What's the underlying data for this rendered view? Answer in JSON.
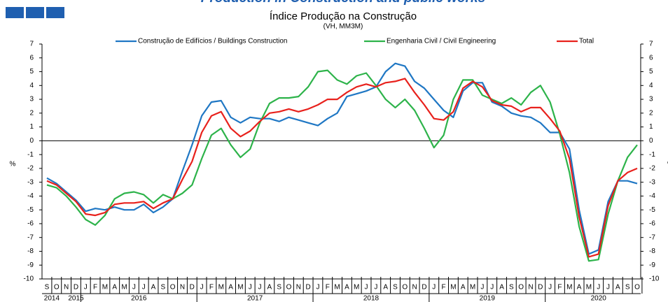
{
  "chart_data": {
    "type": "line",
    "title": "Production in Construction and public works",
    "subtitle": "Índice Produção na Construção",
    "subtitle2": "(VH, MM3M)",
    "ylabel": "%",
    "y2label": "%",
    "categories": [
      "S",
      "O",
      "N",
      "D",
      "J",
      "F",
      "M",
      "A",
      "M",
      "J",
      "J",
      "A",
      "S",
      "O",
      "N",
      "D",
      "J",
      "F",
      "M",
      "A",
      "M",
      "J",
      "J",
      "A",
      "S",
      "O",
      "N",
      "D",
      "J",
      "F",
      "M",
      "A",
      "M",
      "J",
      "J",
      "A",
      "S",
      "O",
      "N",
      "D",
      "J",
      "F",
      "M",
      "A",
      "M",
      "J",
      "J",
      "A",
      "S",
      "O",
      "N",
      "D",
      "J",
      "F",
      "M",
      "A",
      "M",
      "J",
      "J",
      "A",
      "S",
      "O"
    ],
    "year_labels": [
      "2014",
      "2015",
      "2016",
      "2017",
      "2018",
      "2019",
      "2020"
    ],
    "series": [
      {
        "name": "Construção de Edifícios / Buildings Construction",
        "color": "#1f77c4",
        "values": [
          -2.7,
          -3.1,
          -3.7,
          -4.3,
          -5.1,
          -4.9,
          -5.0,
          -4.8,
          -5.0,
          -5.0,
          -4.6,
          -5.2,
          -4.8,
          -4.2,
          -2.2,
          -0.3,
          1.8,
          2.8,
          2.9,
          1.7,
          1.3,
          1.7,
          1.6,
          1.6,
          1.4,
          1.7,
          1.5,
          1.3,
          1.1,
          1.6,
          2.0,
          3.2,
          3.4,
          3.6,
          3.9,
          5.0,
          5.6,
          5.4,
          4.3,
          3.8,
          3.0,
          2.2,
          1.7,
          3.6,
          4.2,
          4.2,
          2.8,
          2.5,
          2.0,
          1.8,
          1.7,
          1.3,
          0.6,
          0.6,
          -0.6,
          -5.0,
          -8.2,
          -7.9,
          -4.4,
          -2.9,
          -2.9,
          -3.1
        ]
      },
      {
        "name": "Engenharia Civil / Civil Engineering",
        "color": "#2db34a",
        "values": [
          -3.2,
          -3.4,
          -4.0,
          -4.8,
          -5.7,
          -6.1,
          -5.4,
          -4.2,
          -3.8,
          -3.7,
          -3.9,
          -4.5,
          -3.9,
          -4.2,
          -3.8,
          -3.2,
          -1.3,
          0.4,
          0.9,
          -0.3,
          -1.2,
          -0.6,
          1.3,
          2.7,
          3.1,
          3.1,
          3.2,
          3.9,
          5.0,
          5.1,
          4.4,
          4.1,
          4.7,
          4.9,
          4.0,
          3.0,
          2.4,
          3.0,
          2.2,
          0.9,
          -0.5,
          0.4,
          3.0,
          4.4,
          4.4,
          3.3,
          3.0,
          2.7,
          3.1,
          2.6,
          3.5,
          4.0,
          2.8,
          0.5,
          -2.3,
          -6.2,
          -8.7,
          -8.6,
          -5.3,
          -2.9,
          -1.2,
          -0.3
        ]
      },
      {
        "name": "Total",
        "color": "#e8211c",
        "values": [
          -2.9,
          -3.2,
          -3.8,
          -4.4,
          -5.3,
          -5.4,
          -5.2,
          -4.6,
          -4.5,
          -4.5,
          -4.4,
          -4.9,
          -4.5,
          -4.2,
          -2.8,
          -1.5,
          0.6,
          1.8,
          2.1,
          0.9,
          0.3,
          0.7,
          1.4,
          2.0,
          2.1,
          2.3,
          2.1,
          2.3,
          2.6,
          3.0,
          3.0,
          3.5,
          3.9,
          4.1,
          3.9,
          4.2,
          4.3,
          4.5,
          3.5,
          2.6,
          1.6,
          1.5,
          2.1,
          3.8,
          4.3,
          3.9,
          2.9,
          2.6,
          2.5,
          2.1,
          2.4,
          2.4,
          1.6,
          0.7,
          -1.3,
          -5.5,
          -8.4,
          -8.2,
          -4.7,
          -2.9,
          -2.3,
          -2.0
        ]
      }
    ],
    "ylim": [
      -10,
      7
    ],
    "yticks": [
      -10,
      -9,
      -8,
      -7,
      -6,
      -5,
      -4,
      -3,
      -2,
      -1,
      0,
      1,
      2,
      3,
      4,
      5,
      6,
      7
    ],
    "grid": false,
    "zero_line": true,
    "legend": "top"
  }
}
